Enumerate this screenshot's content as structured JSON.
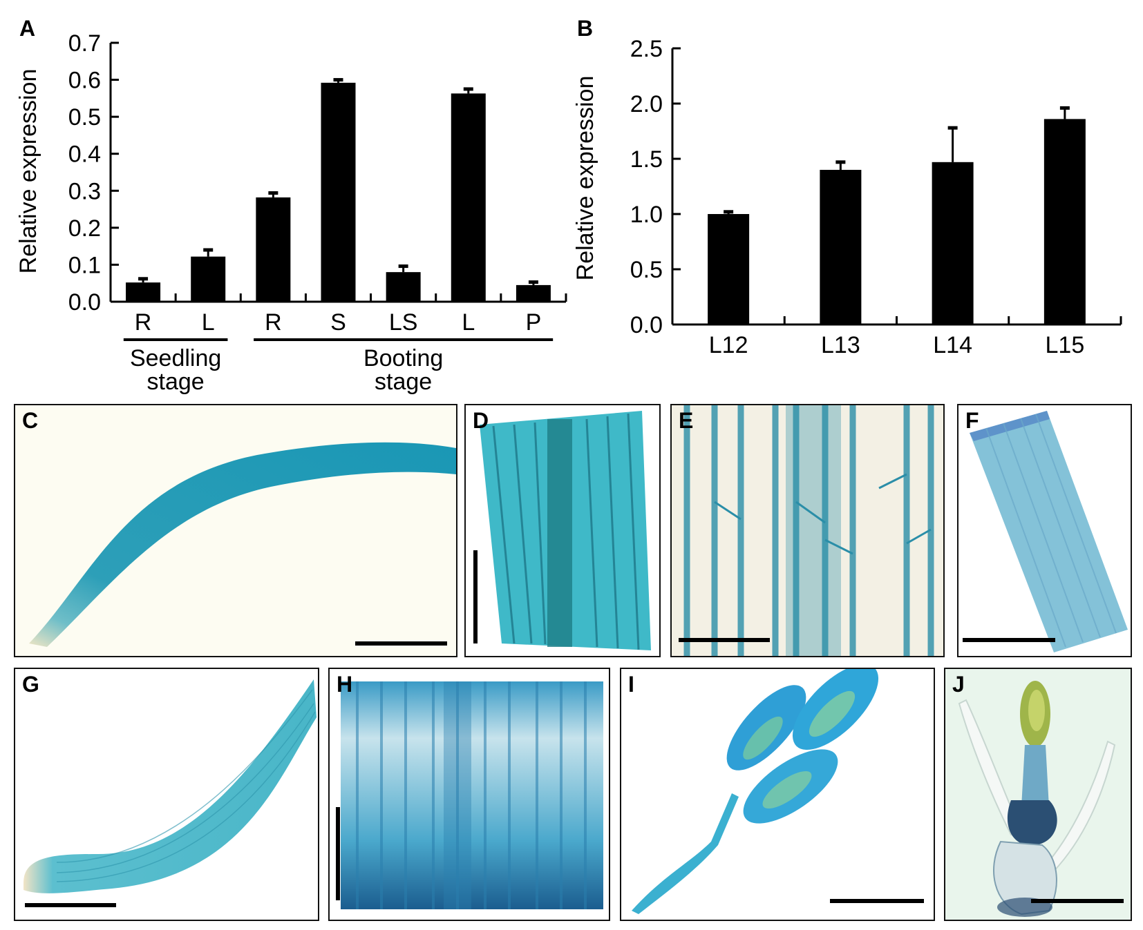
{
  "figure": {
    "panels": [
      "A",
      "B",
      "C",
      "D",
      "E",
      "F",
      "G",
      "H",
      "I",
      "J"
    ],
    "stain_color": "#1aa0bd"
  },
  "chart_data": [
    {
      "type": "bar",
      "panel": "A",
      "categories": [
        "R",
        "L",
        "R",
        "S",
        "LS",
        "L",
        "P"
      ],
      "groups": [
        {
          "label": "Seedling\nstage",
          "categories": [
            "R",
            "L"
          ]
        },
        {
          "label": "Booting\nstage",
          "categories": [
            "R",
            "S",
            "LS",
            "L",
            "P"
          ]
        }
      ],
      "values": [
        0.052,
        0.122,
        0.282,
        0.592,
        0.08,
        0.563,
        0.045
      ],
      "errors": [
        0.01,
        0.018,
        0.012,
        0.008,
        0.016,
        0.012,
        0.008
      ],
      "ylabel": "Relative expression",
      "ylim": [
        0,
        0.7
      ],
      "yticks": [
        "0.0",
        "0.1",
        "0.2",
        "0.3",
        "0.4",
        "0.5",
        "0.6",
        "0.7"
      ],
      "bar_color": "#000000"
    },
    {
      "type": "bar",
      "panel": "B",
      "categories": [
        "L12",
        "L13",
        "L14",
        "L15"
      ],
      "values": [
        1.0,
        1.4,
        1.47,
        1.86
      ],
      "errors": [
        0.02,
        0.07,
        0.31,
        0.1
      ],
      "ylabel": "Relative expression",
      "ylim": [
        0,
        2.5
      ],
      "yticks": [
        "0.0",
        "0.5",
        "1.0",
        "1.5",
        "2.0",
        "2.5"
      ],
      "bar_color": "#000000"
    }
  ]
}
